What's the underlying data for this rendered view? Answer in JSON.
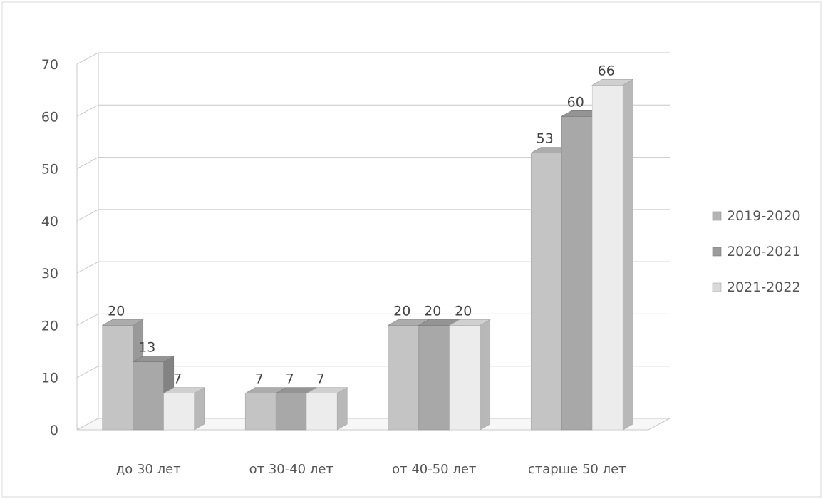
{
  "chart_data": {
    "type": "bar",
    "categories": [
      "до 30 лет",
      "от 30-40 лет",
      "от 40-50 лет",
      "старше 50 лет"
    ],
    "series": [
      {
        "name": "2019-2020",
        "values": [
          20,
          7,
          20,
          53
        ],
        "color": "#c4c4c4"
      },
      {
        "name": "2020-2021",
        "values": [
          13,
          7,
          20,
          60
        ],
        "color": "#a8a8a8"
      },
      {
        "name": "2021-2022",
        "values": [
          7,
          7,
          20,
          66
        ],
        "color": "#ececec"
      }
    ],
    "ylim": [
      0,
      70
    ],
    "yticks": [
      "0",
      "10",
      "20",
      "30",
      "40",
      "50",
      "60",
      "70"
    ],
    "grid": true,
    "legend_position": "right",
    "style": "3d-clustered-column"
  }
}
